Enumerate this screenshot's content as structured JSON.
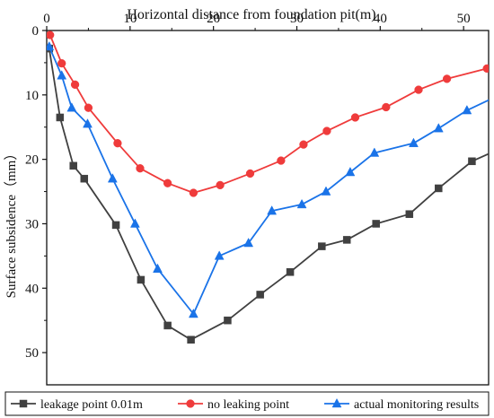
{
  "chart_data": {
    "type": "line",
    "xlabel": "Horizontal distance from foundation pit(m)",
    "ylabel": "Surface subsidence（mm）",
    "xlim": [
      0,
      53
    ],
    "ylim": [
      0,
      55
    ],
    "y_inverted": true,
    "x_axis_position": "top",
    "grid": false,
    "legend_position": "bottom",
    "x_ticks": [
      0,
      10,
      20,
      30,
      40,
      50
    ],
    "y_ticks": [
      0,
      10,
      20,
      30,
      40,
      50
    ],
    "series": [
      {
        "name": "leakage point 0.01m",
        "color": "#404040",
        "marker": "square",
        "x": [
          0.3,
          1.6,
          3.2,
          4.5,
          8.3,
          11.3,
          14.5,
          17.3,
          21.7,
          25.6,
          29.2,
          33.0,
          36.0,
          39.5,
          43.5,
          47.0,
          51.0,
          55.0
        ],
        "y": [
          2.8,
          13.5,
          21.0,
          23.0,
          30.2,
          38.7,
          45.8,
          48.0,
          45.0,
          41.0,
          37.5,
          33.5,
          32.5,
          30.0,
          28.5,
          24.5,
          20.3,
          18.0
        ]
      },
      {
        "name": "no leaking point",
        "color": "#ef3b3b",
        "marker": "circle",
        "x": [
          0.4,
          1.8,
          3.4,
          5.0,
          8.5,
          11.2,
          14.5,
          17.6,
          20.8,
          24.4,
          28.1,
          30.8,
          33.6,
          37.0,
          40.7,
          44.6,
          48.0,
          52.8
        ],
        "y": [
          0.7,
          5.1,
          8.4,
          12.0,
          17.5,
          21.4,
          23.7,
          25.2,
          24.0,
          22.2,
          20.2,
          17.7,
          15.6,
          13.5,
          11.9,
          9.2,
          7.5,
          5.9
        ]
      },
      {
        "name": "actual monitoring results",
        "color": "#1a73e8",
        "marker": "triangle",
        "x": [
          0.3,
          1.8,
          3.0,
          4.9,
          7.9,
          10.6,
          13.3,
          17.6,
          20.7,
          24.2,
          27.0,
          30.6,
          33.5,
          36.4,
          39.3,
          44.0,
          47.0,
          50.4,
          54.0
        ],
        "y": [
          2.5,
          7.0,
          12.0,
          14.5,
          23.0,
          30.0,
          37.0,
          44.0,
          35.0,
          33.0,
          28.0,
          27.0,
          25.0,
          22.0,
          19.0,
          17.5,
          15.2,
          12.4,
          10.2
        ]
      }
    ]
  }
}
